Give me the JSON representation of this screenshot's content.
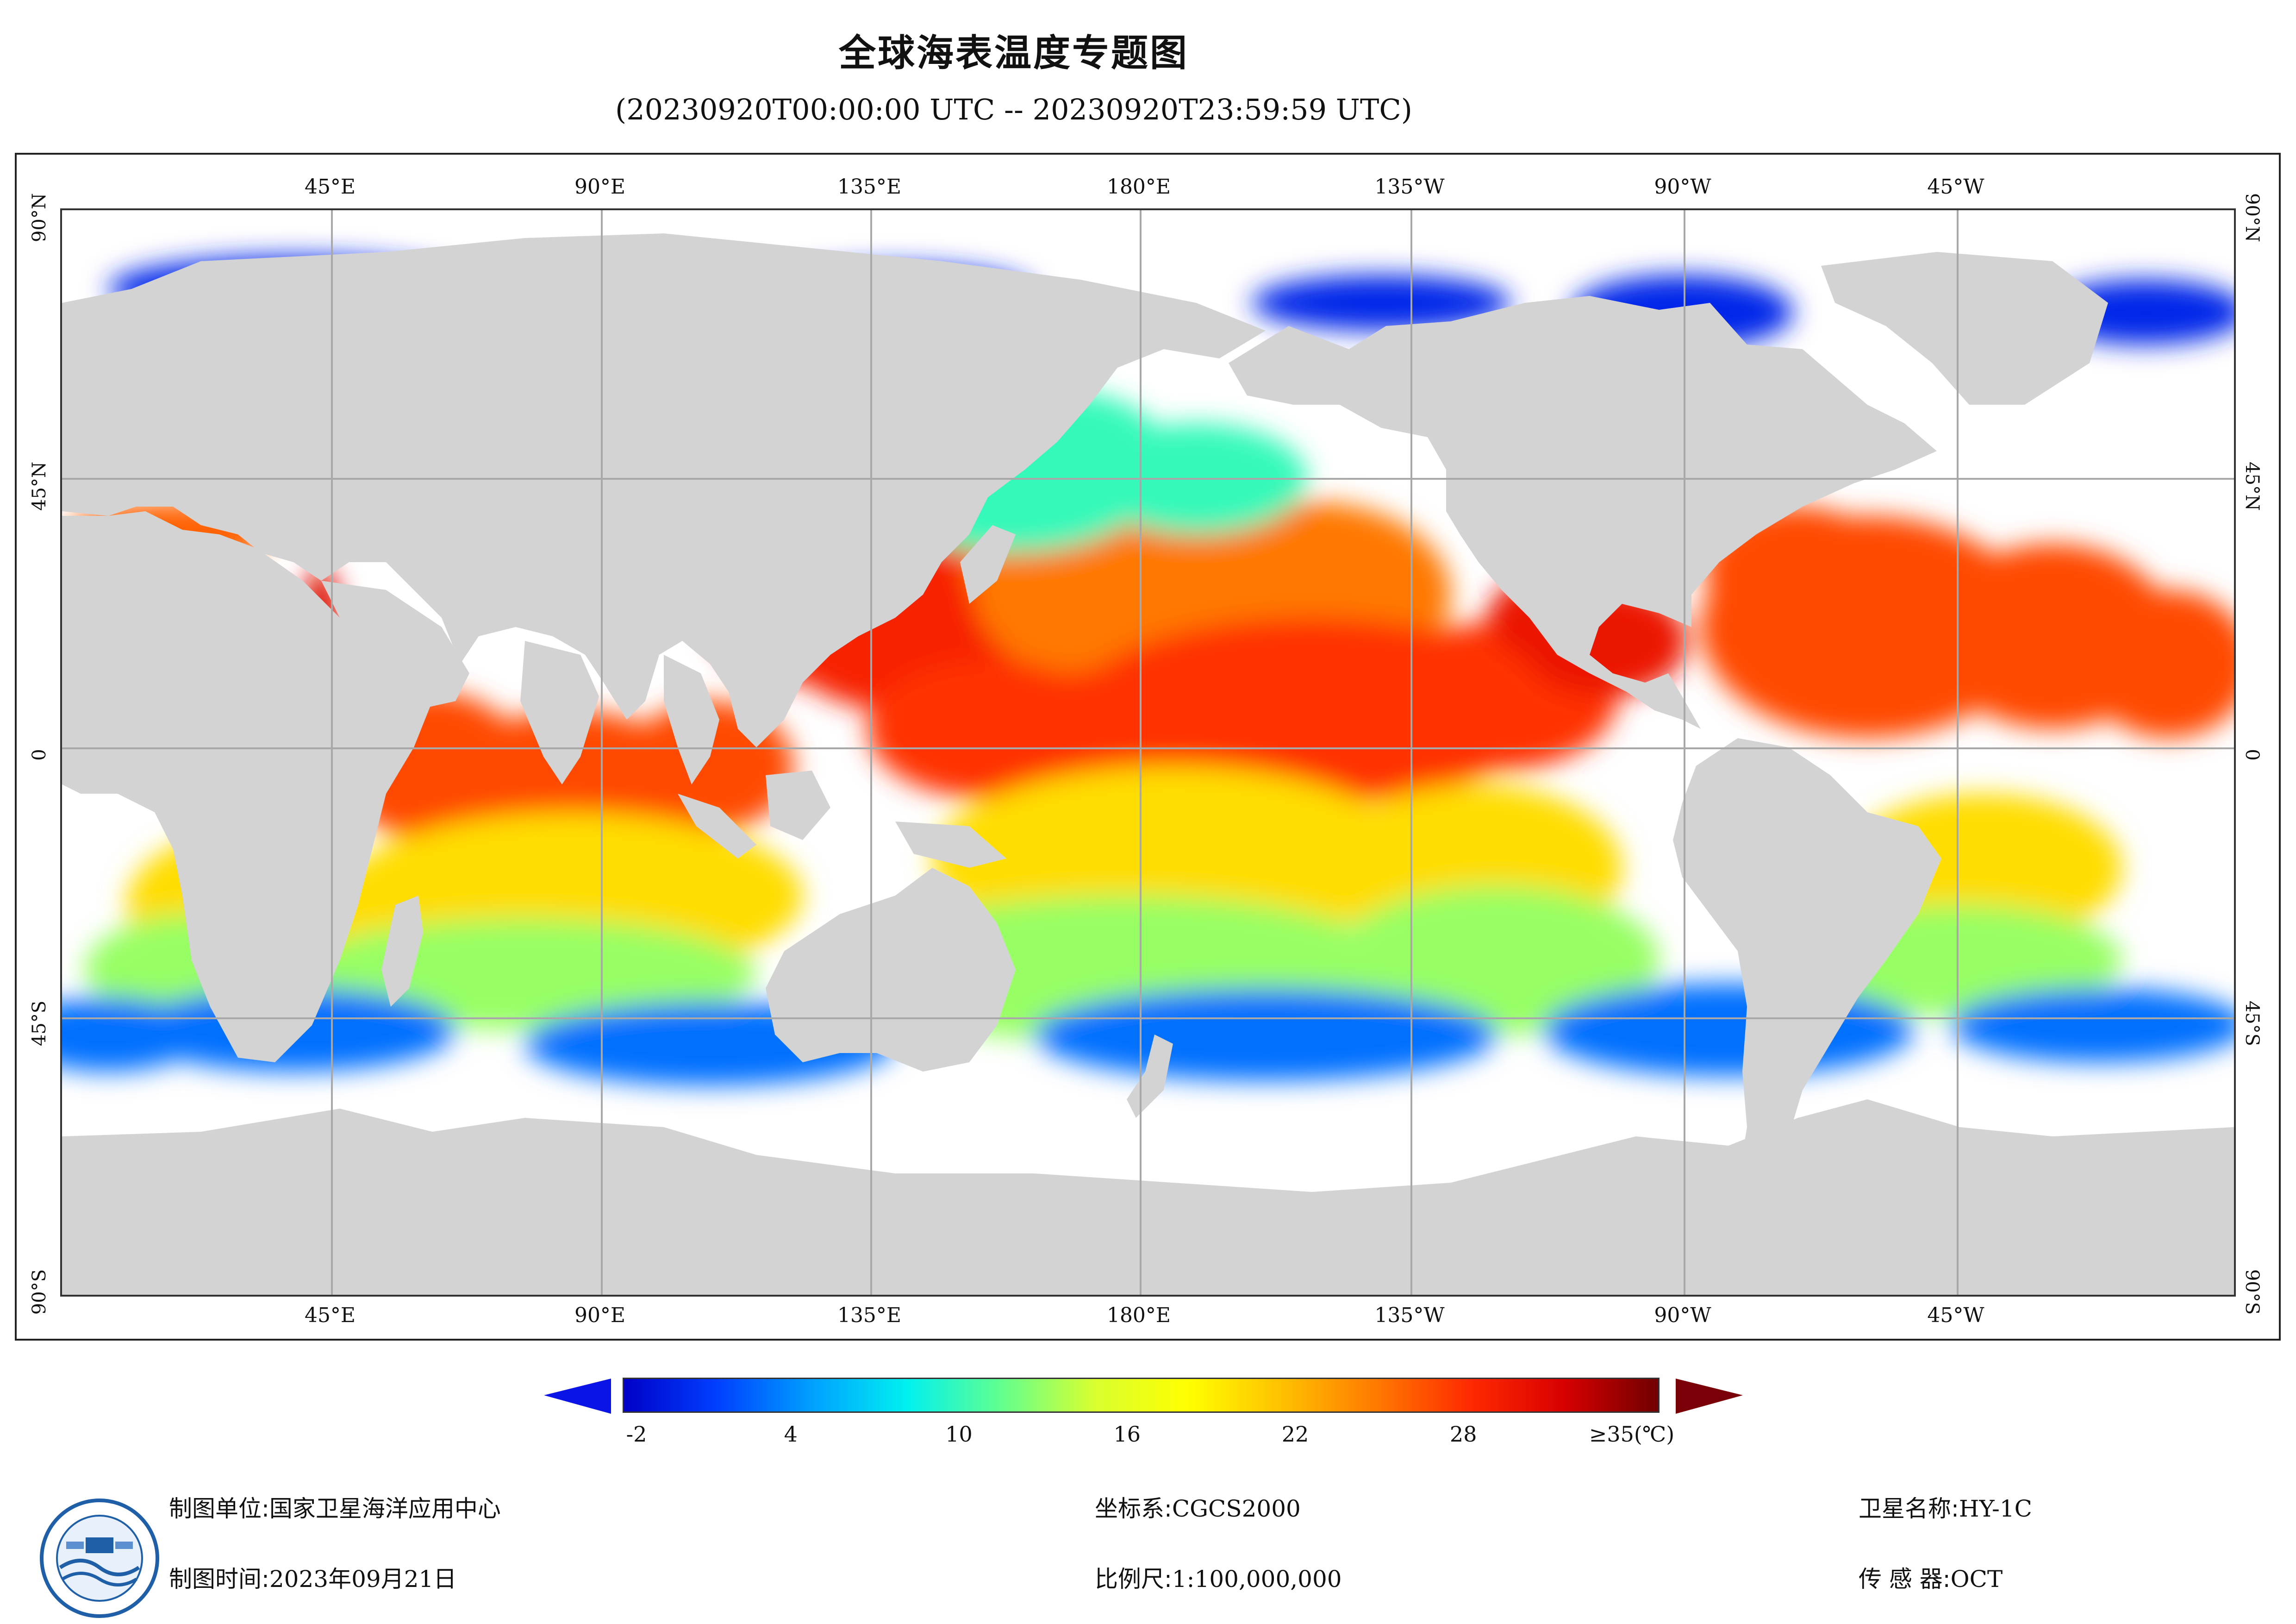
{
  "header": {
    "title": "全球海表温度专题图",
    "subtitle": "(20230920T00:00:00 UTC -- 20230920T23:59:59 UTC)"
  },
  "map": {
    "lon_labels": [
      "45°E",
      "90°E",
      "135°E",
      "180°E",
      "135°W",
      "90°W",
      "45°W"
    ],
    "lat_labels": [
      "90°N",
      "45°N",
      "0",
      "45°S",
      "90°S"
    ],
    "colors": {
      "land": "#d3d3d4",
      "nodata": "#ffffff",
      "grid": "#a8a8a8"
    },
    "sst_regions": [
      {
        "name": "north-pacific-west",
        "temp": 29
      },
      {
        "name": "north-pacific-central",
        "temp": 25
      },
      {
        "name": "equatorial-pacific",
        "temp": 28
      },
      {
        "name": "gulf-of-mexico",
        "temp": 30
      },
      {
        "name": "north-atlantic",
        "temp": 27
      },
      {
        "name": "indian-ocean",
        "temp": 27
      },
      {
        "name": "red-sea",
        "temp": 31
      },
      {
        "name": "mediterranean",
        "temp": 26
      },
      {
        "name": "south-subtropical",
        "temp": 20
      },
      {
        "name": "southern-mid",
        "temp": 13
      },
      {
        "name": "southern-ocean",
        "temp": 3
      },
      {
        "name": "arctic",
        "temp": 0
      },
      {
        "name": "north-pacific-north",
        "temp": 10
      }
    ]
  },
  "colorbar": {
    "ticks": [
      {
        "value": -2,
        "label": "-2"
      },
      {
        "value": 4,
        "label": "4"
      },
      {
        "value": 10,
        "label": "10"
      },
      {
        "value": 16,
        "label": "16"
      },
      {
        "value": 22,
        "label": "22"
      },
      {
        "value": 28,
        "label": "28"
      },
      {
        "value": 35,
        "label": "≥35(℃)"
      }
    ],
    "min": -2,
    "max": 35,
    "stops": [
      "#0000c8",
      "#0040ff",
      "#00a0ff",
      "#00f0f0",
      "#60ff90",
      "#d8ff30",
      "#ffff00",
      "#ffc000",
      "#ff7a00",
      "#ff2a00",
      "#d80000",
      "#700000"
    ],
    "under_color": "#0a14e6",
    "over_color": "#7a0008"
  },
  "footer": {
    "unit_label": "制图单位:",
    "unit_value": "国家卫星海洋应用中心",
    "time_label": "制图时间:",
    "time_value": "2023年09月21日",
    "crs_label": "坐标系:",
    "crs_value": "CGCS2000",
    "scale_label": "比例尺:",
    "scale_value": "1:100,000,000",
    "sat_label": "卫星名称:",
    "sat_value": "HY-1C",
    "sensor_label": "传 感 器:",
    "sensor_value": "OCT"
  }
}
